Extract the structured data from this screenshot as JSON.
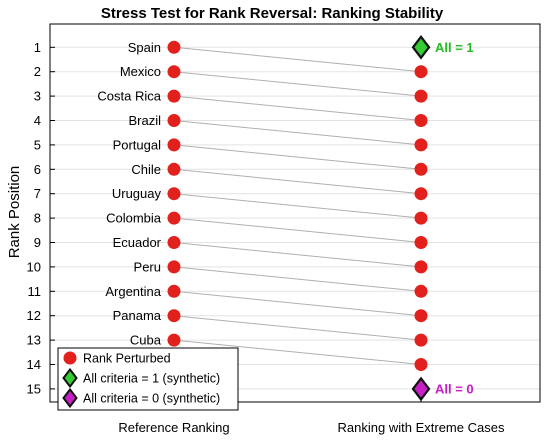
{
  "chart_data": {
    "type": "scatter",
    "title": "Stress Test for Rank Reversal: Ranking Stability",
    "ylabel": "Rank Position",
    "xlabel": "",
    "x_categories": [
      "Reference Ranking",
      "Ranking with Extreme Cases"
    ],
    "y_ticks": [
      "1",
      "2",
      "3",
      "4",
      "5",
      "6",
      "7",
      "8",
      "9",
      "10",
      "11",
      "12",
      "13",
      "14",
      "15"
    ],
    "ylim": [
      0.5,
      15.5
    ],
    "y_reversed": true,
    "grid": "horizontal",
    "series": [
      {
        "name": "Rank Perturbed",
        "marker": "circle",
        "color": "#e3211c",
        "countries": [
          "Spain",
          "Mexico",
          "Costa Rica",
          "Brazil",
          "Portugal",
          "Chile",
          "Uruguay",
          "Colombia",
          "Ecuador",
          "Peru",
          "Argentina",
          "Panama",
          "Cuba"
        ],
        "reference_rank": [
          1,
          2,
          3,
          4,
          5,
          6,
          7,
          8,
          9,
          10,
          11,
          12,
          13
        ],
        "extreme_rank": [
          2,
          3,
          4,
          5,
          6,
          7,
          8,
          9,
          10,
          11,
          12,
          13,
          14
        ]
      },
      {
        "name": "All criteria = 1 (synthetic)",
        "marker": "diamond",
        "color": "#33cc33",
        "rank": 1,
        "annotation": "All = 1",
        "annotation_color": "#22bb22"
      },
      {
        "name": "All criteria = 0 (synthetic)",
        "marker": "diamond",
        "color": "#c61fc6",
        "rank": 15,
        "annotation": "All = 0",
        "annotation_color": "#c61fc6"
      }
    ],
    "legend_position": "bottom-left"
  }
}
